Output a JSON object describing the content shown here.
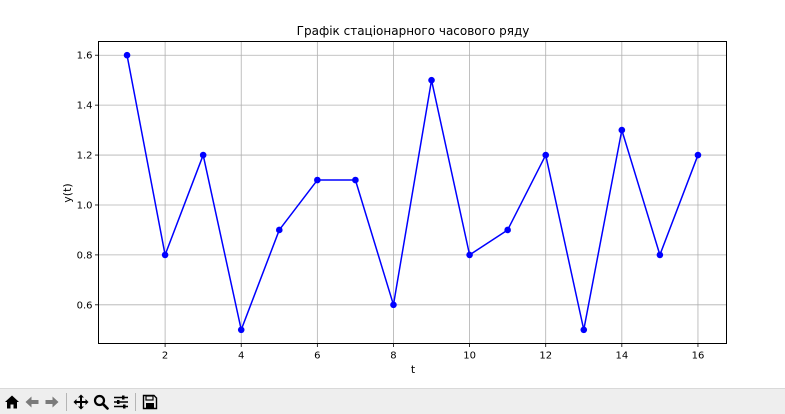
{
  "chart_data": {
    "type": "line",
    "title": "Графік стаціонарного часового ряду",
    "xlabel": "t",
    "ylabel": "y(t)",
    "x": [
      1,
      2,
      3,
      4,
      5,
      6,
      7,
      8,
      9,
      10,
      11,
      12,
      13,
      14,
      15,
      16
    ],
    "series": [
      {
        "values": [
          1.6,
          0.8,
          1.2,
          0.5,
          0.9,
          1.1,
          1.1,
          0.6,
          1.5,
          0.8,
          0.9,
          1.2,
          0.5,
          1.3,
          0.8,
          1.2
        ],
        "color": "#0000ff",
        "marker": "circle"
      }
    ],
    "xlim": [
      0.25,
      16.75
    ],
    "ylim": [
      0.445,
      1.655
    ],
    "xticks": [
      2,
      4,
      6,
      8,
      10,
      12,
      14,
      16
    ],
    "xtick_labels": [
      "2",
      "4",
      "6",
      "8",
      "10",
      "12",
      "14",
      "16"
    ],
    "yticks": [
      0.6,
      0.8,
      1.0,
      1.2,
      1.4,
      1.6
    ],
    "ytick_labels": [
      "0.6",
      "0.8",
      "1.0",
      "1.2",
      "1.4",
      "1.6"
    ],
    "grid": true
  },
  "toolbar": {
    "buttons": [
      {
        "icon": "home-icon"
      },
      {
        "icon": "back-arrow-icon"
      },
      {
        "icon": "forward-arrow-icon"
      },
      {
        "icon": "pan-icon"
      },
      {
        "icon": "zoom-icon"
      },
      {
        "icon": "configure-subplots-icon"
      },
      {
        "icon": "save-icon"
      }
    ]
  }
}
